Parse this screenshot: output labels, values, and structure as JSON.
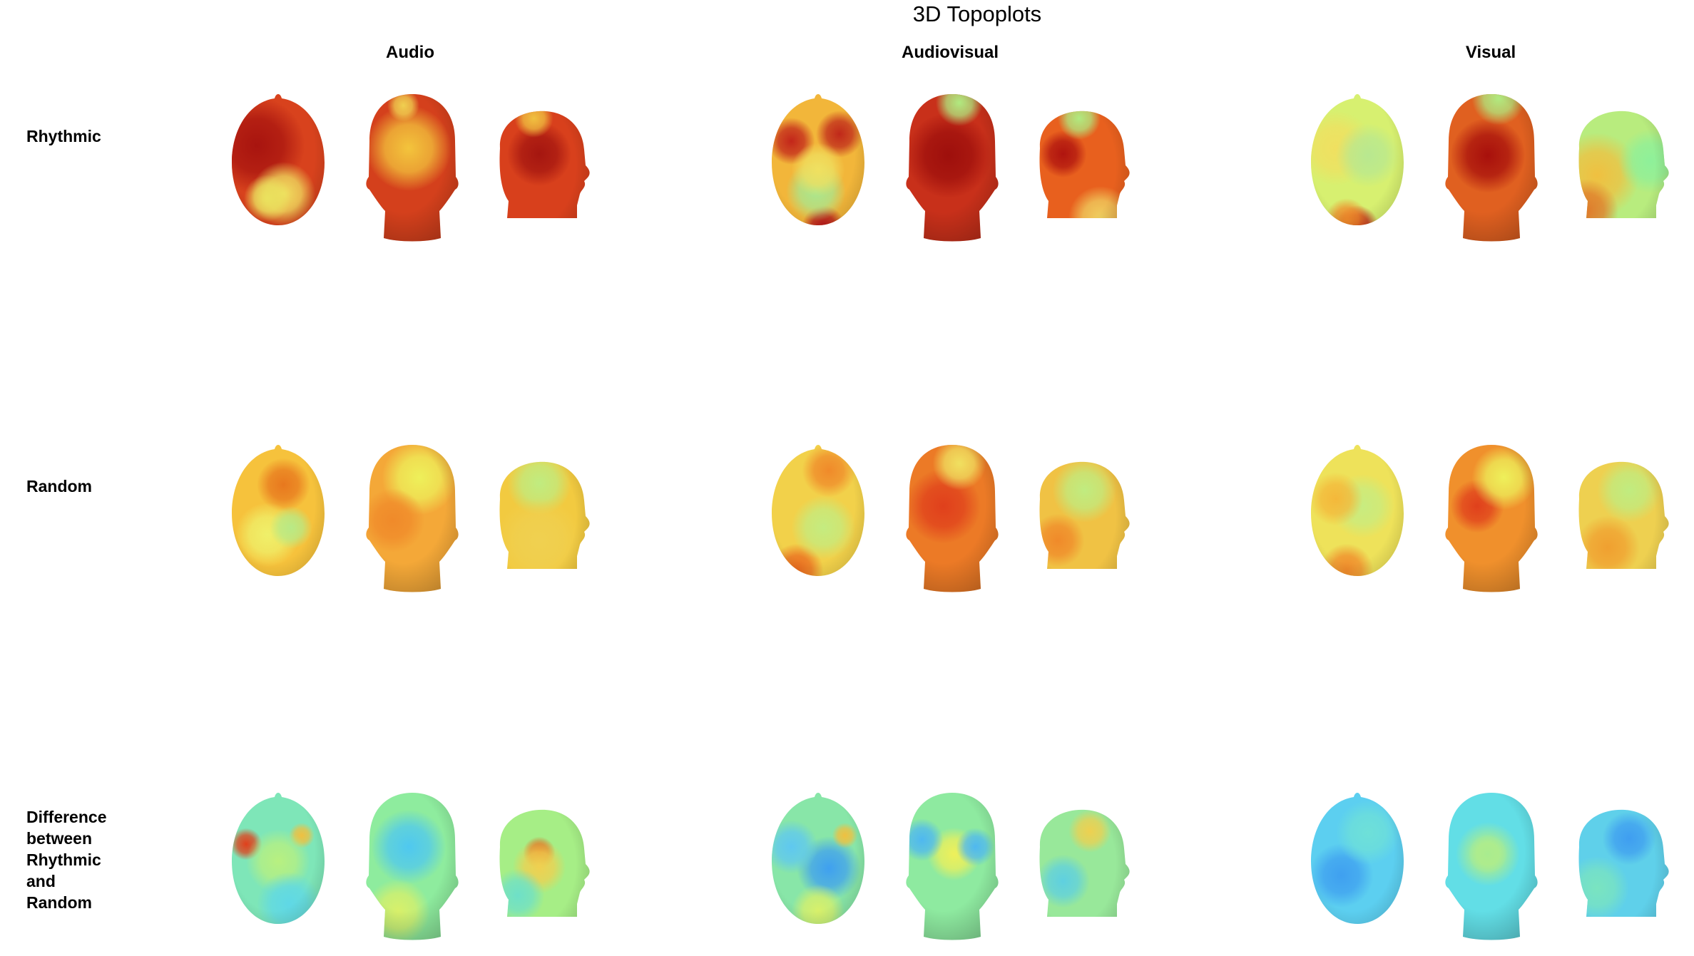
{
  "title": "3D Topoplots",
  "columns": [
    "Audio",
    "Audiovisual",
    "Visual"
  ],
  "rows": [
    {
      "label": [
        "Rhythmic"
      ]
    },
    {
      "label": [
        "Random"
      ]
    },
    {
      "label": [
        "Difference",
        "between",
        "Rhythmic",
        "and",
        "Random"
      ]
    }
  ],
  "colormap": [
    "#2b6ff0",
    "#3fb8f5",
    "#5fe6e6",
    "#9ef08a",
    "#eef05a",
    "#f7c83a",
    "#f08a2a",
    "#e0401c",
    "#a8100c"
  ],
  "panels": [
    [
      {
        "views": [
          {
            "base": "#d8421d",
            "blobs": [
              [
                "#a8140f",
                0.3,
                0.38,
                0.45
              ],
              [
                "#f0e060",
                0.55,
                0.72,
                0.3
              ],
              [
                "#eae25e",
                0.4,
                0.75,
                0.22
              ]
            ]
          },
          {
            "base": "#d4401c",
            "blobs": [
              [
                "#f3c43c",
                0.5,
                0.4,
                0.4
              ],
              [
                "#f0d050",
                0.45,
                0.1,
                0.15
              ]
            ]
          },
          {
            "base": "#d8401c",
            "blobs": [
              [
                "#a51610",
                0.5,
                0.35,
                0.3
              ],
              [
                "#f0c040",
                0.45,
                0.1,
                0.18
              ]
            ]
          }
        ]
      },
      {
        "views": [
          {
            "base": "#f2b63a",
            "blobs": [
              [
                "#c3261a",
                0.25,
                0.35,
                0.22
              ],
              [
                "#c0281a",
                0.7,
                0.3,
                0.22
              ],
              [
                "#b8141a",
                0.55,
                0.95,
                0.2
              ],
              [
                "#a8e890",
                0.48,
                0.7,
                0.28
              ],
              [
                "#f0e060",
                0.5,
                0.55,
                0.25
              ]
            ]
          },
          {
            "base": "#c8301a",
            "blobs": [
              [
                "#9e0f0c",
                0.5,
                0.45,
                0.4
              ],
              [
                "#b0ea80",
                0.6,
                0.08,
                0.22
              ]
            ]
          },
          {
            "base": "#e8601e",
            "blobs": [
              [
                "#b0140f",
                0.35,
                0.35,
                0.22
              ],
              [
                "#b0ea80",
                0.5,
                0.1,
                0.2
              ],
              [
                "#f0d060",
                0.7,
                0.8,
                0.3
              ]
            ]
          }
        ]
      },
      {
        "views": [
          {
            "base": "#d7f070",
            "blobs": [
              [
                "#f0e060",
                0.3,
                0.4,
                0.35
              ],
              [
                "#b8e890",
                0.6,
                0.45,
                0.3
              ],
              [
                "#c01a14",
                0.5,
                0.95,
                0.2
              ],
              [
                "#f08a2a",
                0.4,
                0.9,
                0.2
              ]
            ]
          },
          {
            "base": "#e06020",
            "blobs": [
              [
                "#a8100c",
                0.5,
                0.45,
                0.35
              ],
              [
                "#b0ea80",
                0.6,
                0.05,
                0.25
              ]
            ]
          },
          {
            "base": "#b8ec7e",
            "blobs": [
              [
                "#f0c040",
                0.3,
                0.5,
                0.4
              ],
              [
                "#e07a2a",
                0.2,
                0.75,
                0.3
              ],
              [
                "#8ef09a",
                0.8,
                0.4,
                0.3
              ]
            ]
          }
        ]
      }
    ],
    [
      {
        "views": [
          {
            "base": "#f6c23c",
            "blobs": [
              [
                "#e8781e",
                0.55,
                0.3,
                0.25
              ],
              [
                "#eff06a",
                0.4,
                0.65,
                0.3
              ],
              [
                "#b8ea86",
                0.62,
                0.6,
                0.2
              ]
            ]
          },
          {
            "base": "#f4a838",
            "blobs": [
              [
                "#eef05a",
                0.6,
                0.25,
                0.35
              ],
              [
                "#f08a2a",
                0.35,
                0.55,
                0.3
              ]
            ]
          },
          {
            "base": "#f2ca40",
            "blobs": [
              [
                "#c0ec80",
                0.5,
                0.2,
                0.3
              ],
              [
                "#f0d050",
                0.5,
                0.6,
                0.4
              ]
            ]
          }
        ]
      },
      {
        "views": [
          {
            "base": "#f2d14a",
            "blobs": [
              [
                "#ea6a1e",
                0.3,
                0.9,
                0.25
              ],
              [
                "#f08a2a",
                0.6,
                0.2,
                0.25
              ],
              [
                "#c4ec80",
                0.55,
                0.6,
                0.3
              ]
            ]
          },
          {
            "base": "#ec7a26",
            "blobs": [
              [
                "#e0401c",
                0.45,
                0.45,
                0.35
              ],
              [
                "#f0e060",
                0.6,
                0.15,
                0.25
              ]
            ]
          },
          {
            "base": "#f0c244",
            "blobs": [
              [
                "#c0ec80",
                0.55,
                0.25,
                0.3
              ],
              [
                "#f08a2a",
                0.3,
                0.6,
                0.25
              ]
            ]
          }
        ]
      },
      {
        "views": [
          {
            "base": "#eee25a",
            "blobs": [
              [
                "#f08a2a",
                0.4,
                0.9,
                0.25
              ],
              [
                "#c8ec80",
                0.55,
                0.45,
                0.3
              ],
              [
                "#f4b83a",
                0.3,
                0.4,
                0.25
              ]
            ]
          },
          {
            "base": "#f0902c",
            "blobs": [
              [
                "#e0401c",
                0.4,
                0.45,
                0.25
              ],
              [
                "#eef05a",
                0.65,
                0.25,
                0.3
              ]
            ]
          },
          {
            "base": "#eed050",
            "blobs": [
              [
                "#c0ec80",
                0.6,
                0.25,
                0.3
              ],
              [
                "#f0a030",
                0.4,
                0.65,
                0.3
              ]
            ]
          }
        ]
      }
    ],
    [
      {
        "views": [
          {
            "base": "#7ee6b8",
            "blobs": [
              [
                "#e0401c",
                0.2,
                0.38,
                0.15
              ],
              [
                "#f0c040",
                0.72,
                0.32,
                0.12
              ],
              [
                "#b8f080",
                0.5,
                0.5,
                0.3
              ],
              [
                "#5fd8e6",
                0.6,
                0.8,
                0.3
              ]
            ]
          },
          {
            "base": "#8eec9e",
            "blobs": [
              [
                "#4fc8f0",
                0.5,
                0.4,
                0.35
              ],
              [
                "#d8f06a",
                0.4,
                0.85,
                0.3
              ]
            ]
          },
          {
            "base": "#a6ee86",
            "blobs": [
              [
                "#e0601c",
                0.5,
                0.35,
                0.15
              ],
              [
                "#f0d050",
                0.5,
                0.45,
                0.25
              ],
              [
                "#6ee0c8",
                0.3,
                0.65,
                0.25
              ]
            ]
          }
        ]
      },
      {
        "views": [
          {
            "base": "#88e6a8",
            "blobs": [
              [
                "#3fa0f0",
                0.6,
                0.55,
                0.3
              ],
              [
                "#f0c040",
                0.75,
                0.32,
                0.12
              ],
              [
                "#5fc8f0",
                0.25,
                0.4,
                0.25
              ],
              [
                "#d8f06a",
                0.5,
                0.85,
                0.25
              ]
            ]
          },
          {
            "base": "#8eeaa0",
            "blobs": [
              [
                "#eef05a",
                0.55,
                0.45,
                0.25
              ],
              [
                "#4fb8f0",
                0.25,
                0.35,
                0.2
              ],
              [
                "#4fb8f0",
                0.75,
                0.4,
                0.18
              ]
            ]
          },
          {
            "base": "#98e89a",
            "blobs": [
              [
                "#eed050",
                0.6,
                0.2,
                0.2
              ],
              [
                "#5fd0e0",
                0.35,
                0.55,
                0.25
              ]
            ]
          }
        ]
      },
      {
        "views": [
          {
            "base": "#5ccff0",
            "blobs": [
              [
                "#3fa0f0",
                0.35,
                0.6,
                0.3
              ],
              [
                "#6ee0d8",
                0.6,
                0.3,
                0.3
              ]
            ]
          },
          {
            "base": "#62dee6",
            "blobs": [
              [
                "#eef05a",
                0.5,
                0.45,
                0.18
              ],
              [
                "#a8ec90",
                0.5,
                0.45,
                0.3
              ]
            ]
          },
          {
            "base": "#5fd0ea",
            "blobs": [
              [
                "#3f9ef0",
                0.6,
                0.25,
                0.25
              ],
              [
                "#7ae4c0",
                0.3,
                0.6,
                0.3
              ]
            ]
          }
        ]
      }
    ]
  ]
}
